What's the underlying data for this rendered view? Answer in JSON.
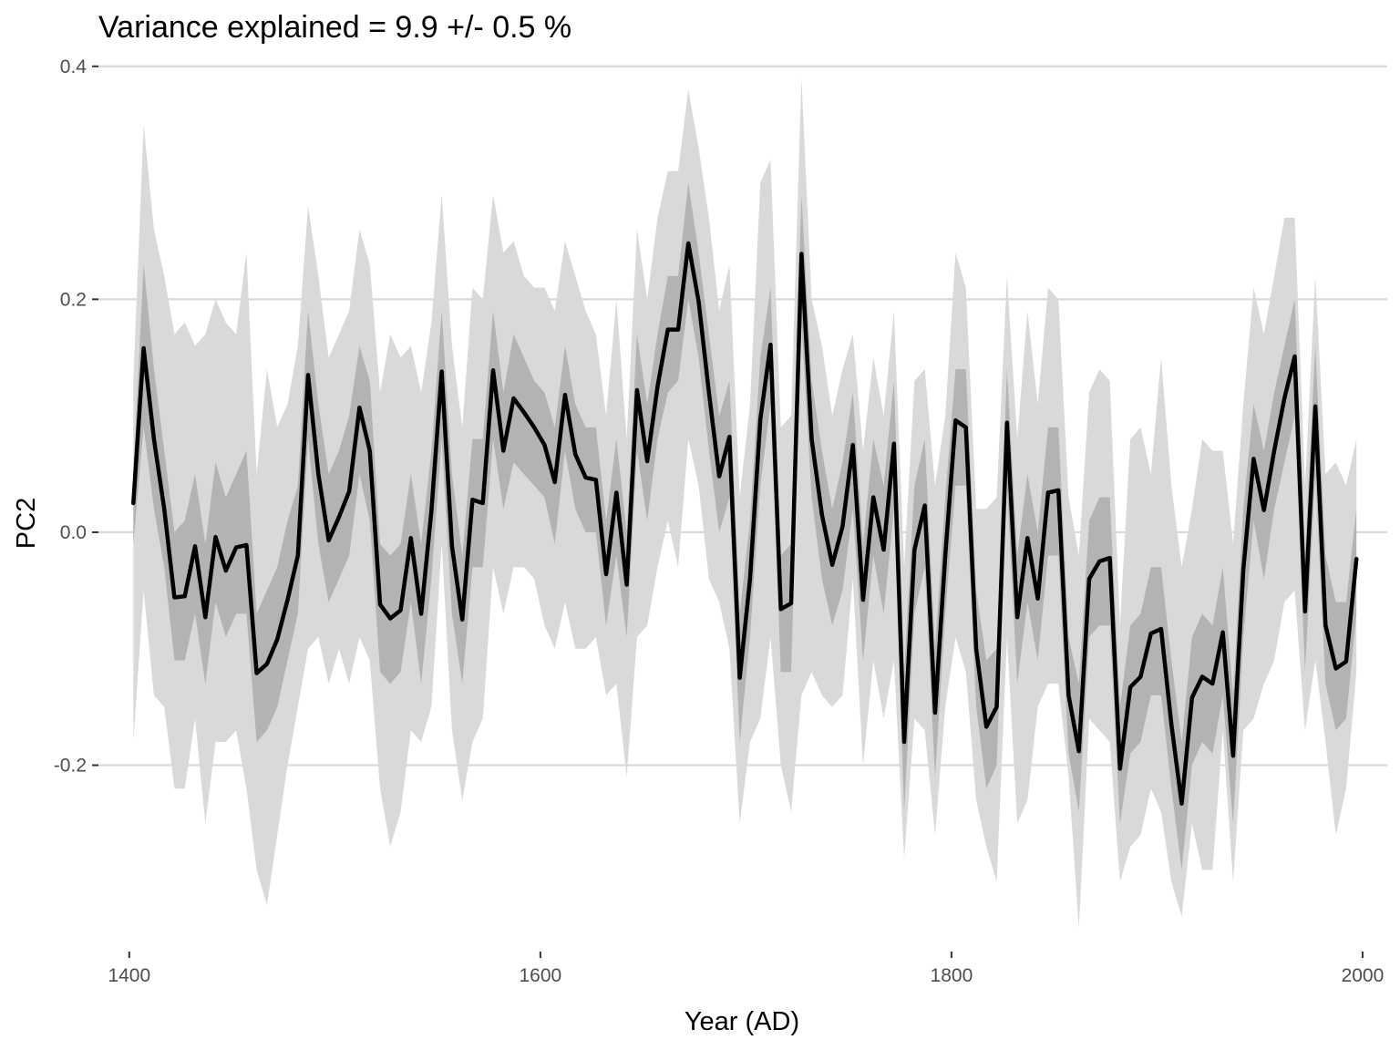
{
  "colors": {
    "background": "#ffffff",
    "gridline": "#d9d9d9",
    "band_outer": "#d9d9d9",
    "band_inner": "#b3b3b3",
    "line": "#000000",
    "tick_text": "#4d4d4d",
    "tick_mark": "#333333"
  },
  "chart_data": {
    "type": "line",
    "title": "Variance explained = 9.9 +/- 0.5 %",
    "xlabel": "Year (AD)",
    "ylabel": "PC2",
    "xlim": [
      1385,
      2012
    ],
    "ylim": [
      -0.36,
      0.41
    ],
    "xticks": [
      1400,
      1600,
      1800,
      2000
    ],
    "xtick_labels": [
      "1400",
      "1600",
      "1800",
      "2000"
    ],
    "yticks": [
      0.4,
      0.2,
      0.0,
      -0.2
    ],
    "ytick_labels": [
      "0.4",
      "0.2",
      "0.0",
      "-0.2"
    ],
    "grid": "horizontal major gridlines",
    "legend": "none",
    "series": [
      {
        "x": [
          1402,
          1407,
          1412,
          1417,
          1422,
          1427,
          1432,
          1437,
          1442,
          1447,
          1452,
          1457,
          1462,
          1467,
          1472,
          1477,
          1482,
          1487,
          1492,
          1497,
          1502,
          1507,
          1512,
          1517,
          1522,
          1527,
          1532,
          1537,
          1542,
          1547,
          1552,
          1557,
          1562,
          1567,
          1572,
          1577,
          1582,
          1587,
          1592,
          1597,
          1602,
          1607,
          1612,
          1617,
          1622,
          1627,
          1632,
          1637,
          1642,
          1647,
          1652,
          1657,
          1662,
          1667,
          1672,
          1677,
          1682,
          1687,
          1692,
          1697,
          1702,
          1707,
          1712,
          1717,
          1722,
          1727,
          1732,
          1737,
          1742,
          1747,
          1752,
          1757,
          1762,
          1767,
          1772,
          1777,
          1782,
          1787,
          1792,
          1797,
          1802,
          1807,
          1812,
          1817,
          1822,
          1827,
          1832,
          1837,
          1842,
          1847,
          1852,
          1857,
          1862,
          1867,
          1872,
          1877,
          1882,
          1887,
          1892,
          1897,
          1902,
          1907,
          1912,
          1917,
          1922,
          1927,
          1932,
          1937,
          1942,
          1947,
          1952,
          1957,
          1962,
          1967,
          1972,
          1977,
          1982,
          1987,
          1992,
          1997
        ],
        "y": [
          0.025,
          0.158,
          0.08,
          0.02,
          -0.056,
          -0.055,
          -0.012,
          -0.073,
          -0.004,
          -0.033,
          -0.013,
          -0.011,
          -0.121,
          -0.113,
          -0.092,
          -0.058,
          -0.02,
          0.135,
          0.05,
          -0.007,
          0.013,
          0.035,
          0.107,
          0.07,
          -0.062,
          -0.074,
          -0.067,
          -0.005,
          -0.07,
          0.018,
          0.138,
          -0.012,
          -0.075,
          0.028,
          0.025,
          0.139,
          0.07,
          0.115,
          0.103,
          0.09,
          0.075,
          0.043,
          0.118,
          0.067,
          0.047,
          0.045,
          -0.036,
          0.034,
          -0.045,
          0.122,
          0.061,
          0.125,
          0.174,
          0.174,
          0.248,
          0.198,
          0.12,
          0.048,
          0.082,
          -0.125,
          -0.04,
          0.097,
          0.161,
          -0.066,
          -0.061,
          0.239,
          0.08,
          0.015,
          -0.028,
          0.005,
          0.075,
          -0.058,
          0.03,
          -0.015,
          0.076,
          -0.18,
          -0.015,
          0.023,
          -0.155,
          -0.02,
          0.096,
          0.09,
          -0.1,
          -0.167,
          -0.15,
          0.094,
          -0.073,
          -0.005,
          -0.057,
          0.034,
          0.036,
          -0.14,
          -0.188,
          -0.04,
          -0.025,
          -0.022,
          -0.203,
          -0.133,
          -0.124,
          -0.087,
          -0.083,
          -0.165,
          -0.233,
          -0.142,
          -0.124,
          -0.13,
          -0.086,
          -0.192,
          -0.032,
          0.063,
          0.019,
          0.07,
          0.115,
          0.151,
          -0.068,
          0.108,
          -0.08,
          -0.117,
          -0.111,
          -0.023
        ],
        "band_inner_upper": [
          0.05,
          0.23,
          0.14,
          0.07,
          0.0,
          0.01,
          0.05,
          -0.01,
          0.06,
          0.03,
          0.05,
          0.07,
          -0.07,
          -0.05,
          -0.03,
          0.01,
          0.04,
          0.19,
          0.11,
          0.05,
          0.07,
          0.1,
          0.16,
          0.13,
          -0.01,
          -0.02,
          -0.01,
          0.05,
          -0.01,
          0.07,
          0.19,
          0.05,
          -0.02,
          0.08,
          0.08,
          0.19,
          0.12,
          0.17,
          0.15,
          0.13,
          0.12,
          0.09,
          0.16,
          0.11,
          0.09,
          0.09,
          0.01,
          0.08,
          0.0,
          0.17,
          0.11,
          0.17,
          0.22,
          0.22,
          0.3,
          0.24,
          0.17,
          0.1,
          0.13,
          -0.07,
          0.01,
          0.15,
          0.21,
          -0.02,
          -0.01,
          0.29,
          0.13,
          0.07,
          0.02,
          0.06,
          0.12,
          -0.01,
          0.08,
          0.04,
          0.13,
          -0.12,
          0.04,
          0.08,
          -0.1,
          0.03,
          0.14,
          0.14,
          -0.05,
          -0.11,
          -0.1,
          0.14,
          -0.02,
          0.05,
          0.0,
          0.09,
          0.09,
          -0.09,
          -0.13,
          0.01,
          0.03,
          0.03,
          -0.15,
          -0.08,
          -0.07,
          -0.03,
          -0.03,
          -0.11,
          -0.18,
          -0.09,
          -0.07,
          -0.08,
          -0.03,
          -0.14,
          0.02,
          0.11,
          0.07,
          0.12,
          0.16,
          0.2,
          -0.02,
          0.16,
          -0.02,
          -0.06,
          -0.06,
          0.02
        ],
        "band_inner_lower": [
          -0.01,
          0.09,
          0.02,
          -0.03,
          -0.11,
          -0.11,
          -0.07,
          -0.13,
          -0.06,
          -0.09,
          -0.07,
          -0.07,
          -0.18,
          -0.17,
          -0.15,
          -0.11,
          -0.07,
          0.08,
          -0.01,
          -0.06,
          -0.04,
          -0.02,
          0.05,
          0.01,
          -0.12,
          -0.13,
          -0.12,
          -0.06,
          -0.13,
          -0.04,
          0.08,
          -0.07,
          -0.13,
          -0.03,
          -0.03,
          0.08,
          0.02,
          0.06,
          0.05,
          0.04,
          0.03,
          -0.01,
          0.07,
          0.02,
          0.0,
          0.0,
          -0.08,
          -0.02,
          -0.09,
          0.07,
          0.01,
          0.08,
          0.12,
          0.13,
          0.2,
          0.15,
          0.07,
          0.0,
          0.03,
          -0.18,
          -0.09,
          0.04,
          0.11,
          -0.12,
          -0.12,
          0.18,
          0.03,
          -0.04,
          -0.08,
          -0.05,
          0.02,
          -0.11,
          -0.02,
          -0.07,
          0.02,
          -0.24,
          -0.07,
          -0.03,
          -0.21,
          -0.07,
          0.04,
          0.04,
          -0.15,
          -0.22,
          -0.2,
          0.04,
          -0.13,
          -0.06,
          -0.11,
          -0.02,
          -0.02,
          -0.19,
          -0.24,
          -0.09,
          -0.08,
          -0.08,
          -0.25,
          -0.19,
          -0.18,
          -0.14,
          -0.14,
          -0.22,
          -0.29,
          -0.2,
          -0.18,
          -0.19,
          -0.14,
          -0.25,
          -0.09,
          0.01,
          -0.04,
          0.02,
          0.06,
          0.1,
          -0.12,
          0.05,
          -0.13,
          -0.17,
          -0.16,
          -0.07
        ],
        "band_outer_upper": [
          0.13,
          0.35,
          0.26,
          0.22,
          0.17,
          0.18,
          0.16,
          0.17,
          0.2,
          0.18,
          0.17,
          0.24,
          0.05,
          0.14,
          0.09,
          0.11,
          0.16,
          0.28,
          0.22,
          0.15,
          0.17,
          0.19,
          0.26,
          0.23,
          0.12,
          0.17,
          0.15,
          0.16,
          0.12,
          0.18,
          0.29,
          0.16,
          0.09,
          0.21,
          0.2,
          0.29,
          0.24,
          0.25,
          0.22,
          0.21,
          0.21,
          0.19,
          0.25,
          0.22,
          0.19,
          0.17,
          0.1,
          0.2,
          0.08,
          0.26,
          0.2,
          0.27,
          0.31,
          0.31,
          0.38,
          0.33,
          0.27,
          0.19,
          0.23,
          0.03,
          0.11,
          0.3,
          0.32,
          0.09,
          0.1,
          0.39,
          0.2,
          0.16,
          0.1,
          0.14,
          0.17,
          0.07,
          0.15,
          0.1,
          0.19,
          -0.03,
          0.13,
          0.14,
          0.04,
          0.1,
          0.24,
          0.21,
          0.02,
          0.02,
          0.03,
          0.22,
          0.08,
          0.19,
          0.11,
          0.21,
          0.2,
          0.03,
          -0.02,
          0.12,
          0.14,
          0.13,
          -0.08,
          0.08,
          0.09,
          0.05,
          0.15,
          0.04,
          -0.03,
          0.02,
          0.08,
          0.07,
          0.07,
          -0.01,
          0.11,
          0.21,
          0.17,
          0.22,
          0.27,
          0.27,
          0.04,
          0.22,
          0.05,
          0.06,
          0.04,
          0.08
        ],
        "band_outer_lower": [
          -0.18,
          -0.05,
          -0.14,
          -0.15,
          -0.22,
          -0.22,
          -0.16,
          -0.25,
          -0.18,
          -0.18,
          -0.17,
          -0.22,
          -0.29,
          -0.32,
          -0.26,
          -0.2,
          -0.15,
          -0.1,
          -0.09,
          -0.13,
          -0.1,
          -0.13,
          -0.09,
          -0.11,
          -0.22,
          -0.27,
          -0.24,
          -0.17,
          -0.18,
          -0.15,
          -0.01,
          -0.17,
          -0.23,
          -0.18,
          -0.16,
          -0.03,
          -0.07,
          -0.03,
          -0.03,
          -0.04,
          -0.08,
          -0.1,
          -0.06,
          -0.1,
          -0.1,
          -0.09,
          -0.14,
          -0.13,
          -0.21,
          -0.09,
          -0.08,
          -0.03,
          0.01,
          -0.03,
          0.08,
          0.04,
          -0.04,
          -0.06,
          -0.1,
          -0.25,
          -0.18,
          -0.16,
          -0.09,
          -0.2,
          -0.24,
          -0.14,
          -0.12,
          -0.14,
          -0.15,
          -0.14,
          -0.04,
          -0.2,
          -0.11,
          -0.16,
          -0.11,
          -0.28,
          -0.16,
          -0.17,
          -0.26,
          -0.15,
          -0.09,
          -0.12,
          -0.23,
          -0.27,
          -0.3,
          -0.09,
          -0.25,
          -0.23,
          -0.15,
          -0.13,
          -0.13,
          -0.21,
          -0.34,
          -0.16,
          -0.17,
          -0.18,
          -0.3,
          -0.27,
          -0.26,
          -0.22,
          -0.24,
          -0.3,
          -0.33,
          -0.25,
          -0.29,
          -0.29,
          -0.17,
          -0.3,
          -0.17,
          -0.16,
          -0.13,
          -0.11,
          -0.06,
          -0.05,
          -0.17,
          -0.11,
          -0.18,
          -0.26,
          -0.22,
          -0.12
        ]
      }
    ]
  }
}
